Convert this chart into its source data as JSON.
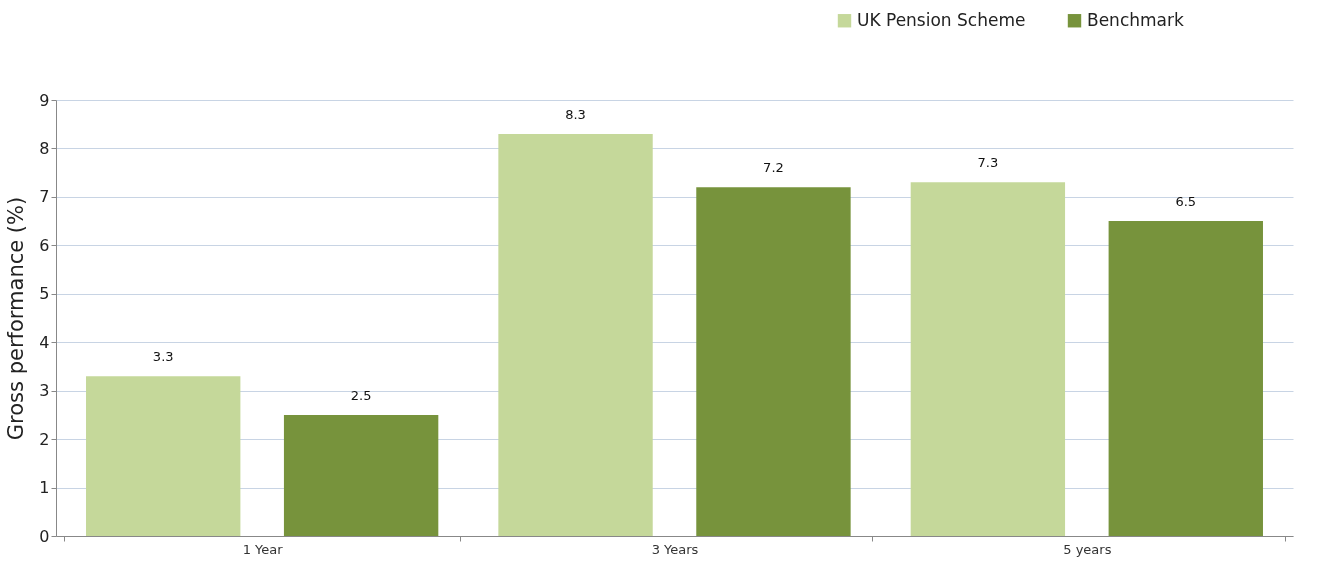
{
  "chart_data": {
    "type": "bar",
    "ylabel": "Gross performance (%)",
    "categories": [
      "1 Year",
      "3 Years",
      "5 years"
    ],
    "series": [
      {
        "name": "UK Pension Scheme",
        "color": "#c5d89a",
        "values": [
          3.3,
          8.3,
          7.3
        ]
      },
      {
        "name": "Benchmark",
        "color": "#77933c",
        "values": [
          2.5,
          7.2,
          6.5
        ]
      }
    ],
    "ylim": [
      0,
      9
    ],
    "yticks": [
      0,
      1,
      2,
      3,
      4,
      5,
      6,
      7,
      8,
      9
    ],
    "grid": "y",
    "legend": "top right",
    "data_labels": true
  }
}
